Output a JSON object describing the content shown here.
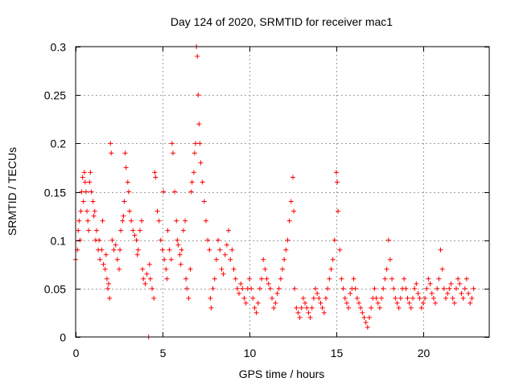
{
  "chart_data": {
    "type": "scatter",
    "title": "Day 124 of 2020, SRMTID for receiver mac1",
    "xlabel": "GPS time / hours",
    "ylabel": "SRMTID / TECUs",
    "xlim": [
      0,
      23.8
    ],
    "ylim": [
      0,
      0.3
    ],
    "xticks": [
      0,
      5,
      10,
      15,
      20
    ],
    "xtick_labels": [
      "0",
      "5",
      "10",
      "15",
      "20"
    ],
    "yticks": [
      0,
      0.05,
      0.1,
      0.15,
      0.2,
      0.25,
      0.3
    ],
    "ytick_labels": [
      "0",
      "0.05",
      "0.1",
      "0.15",
      "0.2",
      "0.25",
      "0.3"
    ],
    "grid": true,
    "marker": "+",
    "color": "#ff0000",
    "series": [
      {
        "name": "mac1",
        "points": [
          [
            0.0,
            0.08
          ],
          [
            0.1,
            0.09
          ],
          [
            0.15,
            0.11
          ],
          [
            0.2,
            0.12
          ],
          [
            0.25,
            0.1
          ],
          [
            0.3,
            0.13
          ],
          [
            0.35,
            0.15
          ],
          [
            0.4,
            0.165
          ],
          [
            0.45,
            0.14
          ],
          [
            0.5,
            0.17
          ],
          [
            0.55,
            0.16
          ],
          [
            0.6,
            0.15
          ],
          [
            0.65,
            0.13
          ],
          [
            0.7,
            0.12
          ],
          [
            0.75,
            0.11
          ],
          [
            0.8,
            0.16
          ],
          [
            0.85,
            0.17
          ],
          [
            0.9,
            0.15
          ],
          [
            1.0,
            0.14
          ],
          [
            1.05,
            0.125
          ],
          [
            1.1,
            0.13
          ],
          [
            1.15,
            0.1
          ],
          [
            1.2,
            0.11
          ],
          [
            1.3,
            0.09
          ],
          [
            1.35,
            0.1
          ],
          [
            1.4,
            0.08
          ],
          [
            1.5,
            0.09
          ],
          [
            1.55,
            0.12
          ],
          [
            1.6,
            0.075
          ],
          [
            1.7,
            0.07
          ],
          [
            1.75,
            0.085
          ],
          [
            1.8,
            0.06
          ],
          [
            1.85,
            0.05
          ],
          [
            1.9,
            0.055
          ],
          [
            1.95,
            0.04
          ],
          [
            2.0,
            0.2
          ],
          [
            2.05,
            0.19
          ],
          [
            2.1,
            0.1
          ],
          [
            2.2,
            0.09
          ],
          [
            2.3,
            0.095
          ],
          [
            2.4,
            0.08
          ],
          [
            2.5,
            0.07
          ],
          [
            2.55,
            0.09
          ],
          [
            2.6,
            0.11
          ],
          [
            2.7,
            0.12
          ],
          [
            2.75,
            0.125
          ],
          [
            2.8,
            0.14
          ],
          [
            2.85,
            0.19
          ],
          [
            2.9,
            0.175
          ],
          [
            3.0,
            0.16
          ],
          [
            3.05,
            0.15
          ],
          [
            3.1,
            0.13
          ],
          [
            3.2,
            0.12
          ],
          [
            3.3,
            0.11
          ],
          [
            3.4,
            0.105
          ],
          [
            3.5,
            0.1
          ],
          [
            3.55,
            0.085
          ],
          [
            3.6,
            0.09
          ],
          [
            3.7,
            0.11
          ],
          [
            3.8,
            0.12
          ],
          [
            3.85,
            0.07
          ],
          [
            3.9,
            0.06
          ],
          [
            4.0,
            0.055
          ],
          [
            4.1,
            0.065
          ],
          [
            4.2,
            0.0
          ],
          [
            4.25,
            0.075
          ],
          [
            4.3,
            0.06
          ],
          [
            4.4,
            0.05
          ],
          [
            4.5,
            0.04
          ],
          [
            4.55,
            0.17
          ],
          [
            4.6,
            0.165
          ],
          [
            4.7,
            0.13
          ],
          [
            4.8,
            0.12
          ],
          [
            4.9,
            0.1
          ],
          [
            5.0,
            0.09
          ],
          [
            5.05,
            0.15
          ],
          [
            5.1,
            0.08
          ],
          [
            5.2,
            0.07
          ],
          [
            5.25,
            0.06
          ],
          [
            5.3,
            0.11
          ],
          [
            5.4,
            0.09
          ],
          [
            5.5,
            0.08
          ],
          [
            5.55,
            0.2
          ],
          [
            5.6,
            0.19
          ],
          [
            5.7,
            0.15
          ],
          [
            5.8,
            0.12
          ],
          [
            5.85,
            0.1
          ],
          [
            5.9,
            0.095
          ],
          [
            6.0,
            0.085
          ],
          [
            6.05,
            0.075
          ],
          [
            6.1,
            0.09
          ],
          [
            6.2,
            0.11
          ],
          [
            6.3,
            0.12
          ],
          [
            6.35,
            0.06
          ],
          [
            6.4,
            0.05
          ],
          [
            6.5,
            0.04
          ],
          [
            6.6,
            0.07
          ],
          [
            6.65,
            0.15
          ],
          [
            6.7,
            0.16
          ],
          [
            6.8,
            0.17
          ],
          [
            6.85,
            0.19
          ],
          [
            6.9,
            0.2
          ],
          [
            6.95,
            0.3
          ],
          [
            7.0,
            0.29
          ],
          [
            7.05,
            0.25
          ],
          [
            7.1,
            0.22
          ],
          [
            7.15,
            0.2
          ],
          [
            7.2,
            0.18
          ],
          [
            7.3,
            0.16
          ],
          [
            7.4,
            0.14
          ],
          [
            7.5,
            0.12
          ],
          [
            7.6,
            0.1
          ],
          [
            7.7,
            0.09
          ],
          [
            7.75,
            0.04
          ],
          [
            7.8,
            0.03
          ],
          [
            7.9,
            0.05
          ],
          [
            8.0,
            0.06
          ],
          [
            8.1,
            0.08
          ],
          [
            8.2,
            0.1
          ],
          [
            8.3,
            0.09
          ],
          [
            8.4,
            0.07
          ],
          [
            8.5,
            0.065
          ],
          [
            8.6,
            0.085
          ],
          [
            8.7,
            0.095
          ],
          [
            8.8,
            0.11
          ],
          [
            8.9,
            0.08
          ],
          [
            9.0,
            0.09
          ],
          [
            9.1,
            0.07
          ],
          [
            9.2,
            0.06
          ],
          [
            9.3,
            0.05
          ],
          [
            9.4,
            0.045
          ],
          [
            9.5,
            0.055
          ],
          [
            9.6,
            0.05
          ],
          [
            9.7,
            0.04
          ],
          [
            9.8,
            0.035
          ],
          [
            9.9,
            0.05
          ],
          [
            10.0,
            0.06
          ],
          [
            10.1,
            0.05
          ],
          [
            10.2,
            0.04
          ],
          [
            10.3,
            0.03
          ],
          [
            10.4,
            0.025
          ],
          [
            10.5,
            0.035
          ],
          [
            10.6,
            0.05
          ],
          [
            10.7,
            0.06
          ],
          [
            10.8,
            0.08
          ],
          [
            10.9,
            0.07
          ],
          [
            11.0,
            0.06
          ],
          [
            11.1,
            0.055
          ],
          [
            11.2,
            0.05
          ],
          [
            11.3,
            0.04
          ],
          [
            11.4,
            0.03
          ],
          [
            11.5,
            0.035
          ],
          [
            11.6,
            0.045
          ],
          [
            11.7,
            0.05
          ],
          [
            11.8,
            0.06
          ],
          [
            11.9,
            0.07
          ],
          [
            12.0,
            0.08
          ],
          [
            12.1,
            0.09
          ],
          [
            12.2,
            0.1
          ],
          [
            12.3,
            0.12
          ],
          [
            12.4,
            0.14
          ],
          [
            12.5,
            0.165
          ],
          [
            12.55,
            0.13
          ],
          [
            12.6,
            0.05
          ],
          [
            12.7,
            0.03
          ],
          [
            12.8,
            0.025
          ],
          [
            12.9,
            0.02
          ],
          [
            13.0,
            0.03
          ],
          [
            13.1,
            0.04
          ],
          [
            13.2,
            0.035
          ],
          [
            13.3,
            0.03
          ],
          [
            13.4,
            0.025
          ],
          [
            13.5,
            0.02
          ],
          [
            13.6,
            0.03
          ],
          [
            13.7,
            0.04
          ],
          [
            13.8,
            0.05
          ],
          [
            13.9,
            0.045
          ],
          [
            14.0,
            0.04
          ],
          [
            14.1,
            0.035
          ],
          [
            14.2,
            0.03
          ],
          [
            14.3,
            0.025
          ],
          [
            14.4,
            0.04
          ],
          [
            14.5,
            0.05
          ],
          [
            14.6,
            0.06
          ],
          [
            14.7,
            0.07
          ],
          [
            14.8,
            0.08
          ],
          [
            14.9,
            0.1
          ],
          [
            15.0,
            0.17
          ],
          [
            15.05,
            0.16
          ],
          [
            15.1,
            0.13
          ],
          [
            15.2,
            0.09
          ],
          [
            15.3,
            0.06
          ],
          [
            15.4,
            0.05
          ],
          [
            15.5,
            0.04
          ],
          [
            15.6,
            0.035
          ],
          [
            15.7,
            0.03
          ],
          [
            15.8,
            0.045
          ],
          [
            15.9,
            0.05
          ],
          [
            16.0,
            0.06
          ],
          [
            16.1,
            0.05
          ],
          [
            16.2,
            0.04
          ],
          [
            16.3,
            0.035
          ],
          [
            16.4,
            0.03
          ],
          [
            16.5,
            0.025
          ],
          [
            16.6,
            0.02
          ],
          [
            16.7,
            0.015
          ],
          [
            16.8,
            0.01
          ],
          [
            16.9,
            0.02
          ],
          [
            17.0,
            0.03
          ],
          [
            17.1,
            0.04
          ],
          [
            17.2,
            0.05
          ],
          [
            17.3,
            0.04
          ],
          [
            17.4,
            0.035
          ],
          [
            17.5,
            0.03
          ],
          [
            17.6,
            0.04
          ],
          [
            17.7,
            0.05
          ],
          [
            17.8,
            0.06
          ],
          [
            17.9,
            0.07
          ],
          [
            18.0,
            0.1
          ],
          [
            18.1,
            0.08
          ],
          [
            18.2,
            0.06
          ],
          [
            18.3,
            0.05
          ],
          [
            18.4,
            0.04
          ],
          [
            18.5,
            0.035
          ],
          [
            18.6,
            0.03
          ],
          [
            18.7,
            0.04
          ],
          [
            18.8,
            0.05
          ],
          [
            18.9,
            0.06
          ],
          [
            19.0,
            0.05
          ],
          [
            19.1,
            0.04
          ],
          [
            19.2,
            0.035
          ],
          [
            19.3,
            0.03
          ],
          [
            19.4,
            0.04
          ],
          [
            19.5,
            0.05
          ],
          [
            19.6,
            0.055
          ],
          [
            19.7,
            0.045
          ],
          [
            19.8,
            0.04
          ],
          [
            19.9,
            0.03
          ],
          [
            20.0,
            0.035
          ],
          [
            20.1,
            0.04
          ],
          [
            20.2,
            0.05
          ],
          [
            20.3,
            0.06
          ],
          [
            20.4,
            0.055
          ],
          [
            20.5,
            0.045
          ],
          [
            20.6,
            0.04
          ],
          [
            20.7,
            0.035
          ],
          [
            20.8,
            0.05
          ],
          [
            20.9,
            0.06
          ],
          [
            21.0,
            0.09
          ],
          [
            21.1,
            0.07
          ],
          [
            21.2,
            0.05
          ],
          [
            21.3,
            0.04
          ],
          [
            21.4,
            0.045
          ],
          [
            21.5,
            0.05
          ],
          [
            21.6,
            0.055
          ],
          [
            21.7,
            0.04
          ],
          [
            21.8,
            0.035
          ],
          [
            21.9,
            0.05
          ],
          [
            22.0,
            0.06
          ],
          [
            22.1,
            0.055
          ],
          [
            22.2,
            0.045
          ],
          [
            22.3,
            0.04
          ],
          [
            22.4,
            0.05
          ],
          [
            22.5,
            0.06
          ],
          [
            22.6,
            0.045
          ],
          [
            22.7,
            0.035
          ],
          [
            22.8,
            0.04
          ],
          [
            22.9,
            0.05
          ]
        ]
      }
    ]
  }
}
